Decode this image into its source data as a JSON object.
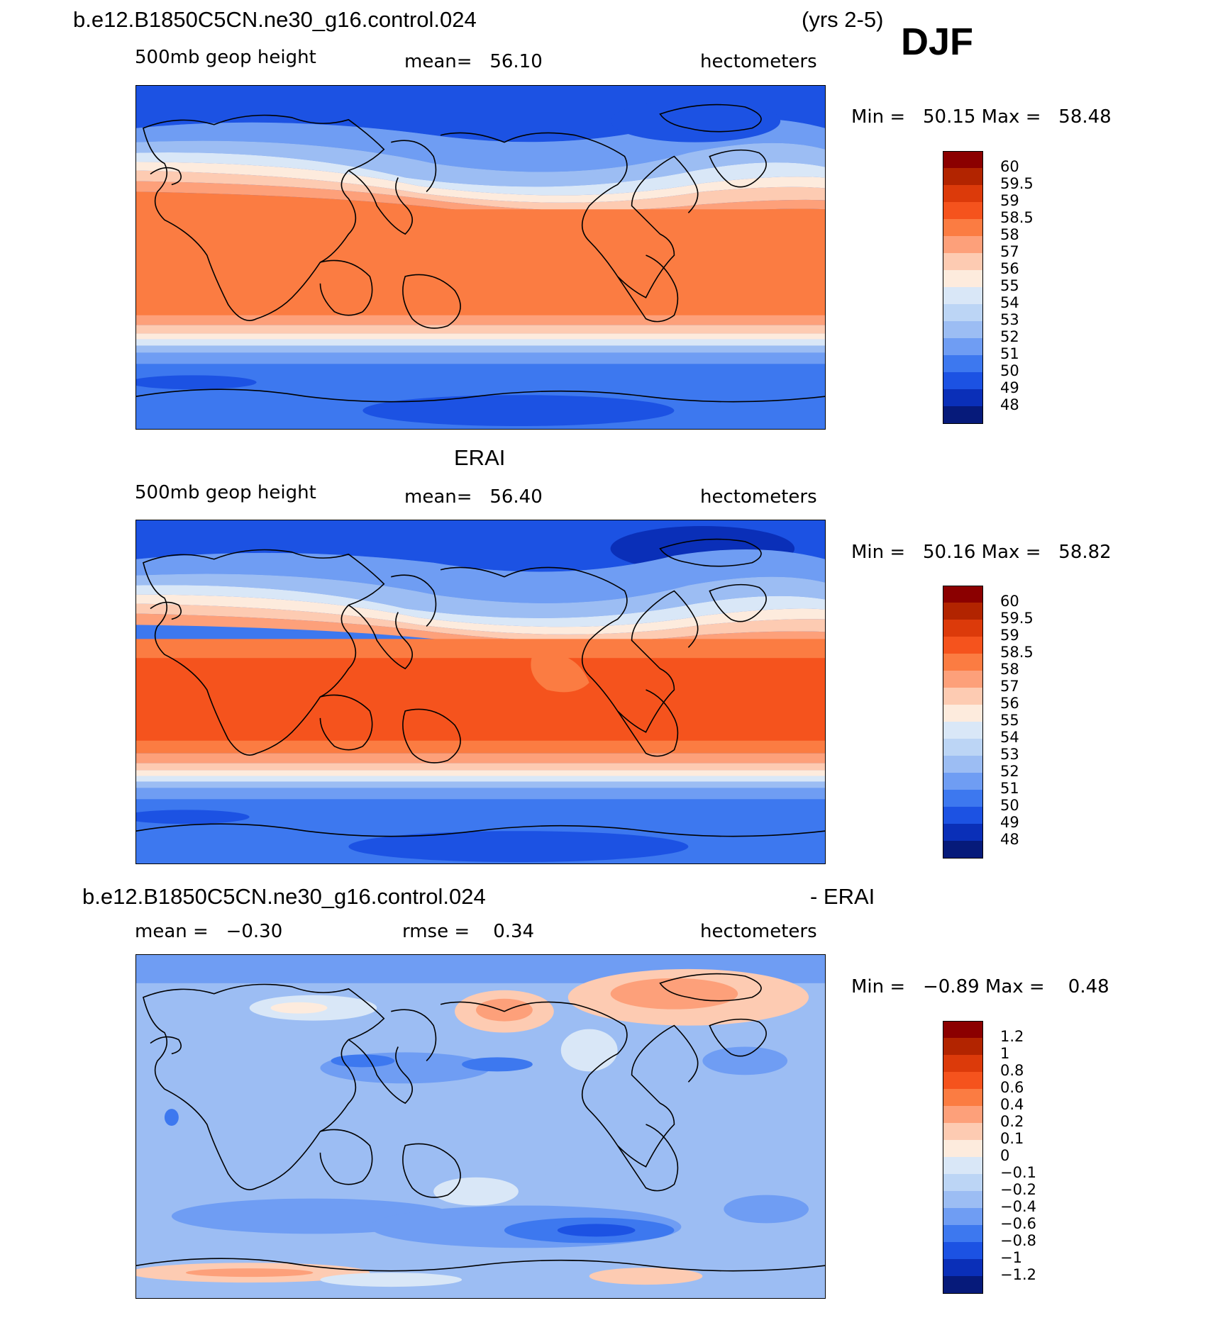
{
  "header": {
    "case_name": "b.e12.B1850C5CN.ne30_g16.control.024",
    "years": "(yrs 2-5)",
    "season": "DJF"
  },
  "panels": [
    {
      "id": "model",
      "title": "",
      "variable": "500mb geop height",
      "stat": "mean=   56.10",
      "units": "hectometers",
      "minmax": "Min =   50.15 Max =   58.48",
      "legend": [
        "60",
        "59.5",
        "59",
        "58.5",
        "58",
        "57",
        "56",
        "55",
        "54",
        "53",
        "52",
        "51",
        "50",
        "49",
        "48"
      ],
      "colors": [
        "#8b0000",
        "#b22400",
        "#dc3a0a",
        "#f5531d",
        "#fb7c42",
        "#fda07a",
        "#fdcbb2",
        "#fdebdd",
        "#d9e7f7",
        "#bcd5f5",
        "#9cbdf3",
        "#6f9df3",
        "#3d78ef",
        "#1c52e3",
        "#0a2fb8",
        "#061a7a"
      ]
    },
    {
      "id": "obs",
      "title": "ERAI",
      "variable": "500mb geop height",
      "stat": "mean=   56.40",
      "units": "hectometers",
      "minmax": "Min =   50.16 Max =   58.82",
      "legend": [
        "60",
        "59.5",
        "59",
        "58.5",
        "58",
        "57",
        "56",
        "55",
        "54",
        "53",
        "52",
        "51",
        "50",
        "49",
        "48"
      ],
      "colors": [
        "#8b0000",
        "#b22400",
        "#dc3a0a",
        "#f5531d",
        "#fb7c42",
        "#fda07a",
        "#fdcbb2",
        "#fdebdd",
        "#d9e7f7",
        "#bcd5f5",
        "#9cbdf3",
        "#6f9df3",
        "#3d78ef",
        "#1c52e3",
        "#0a2fb8",
        "#061a7a"
      ]
    },
    {
      "id": "diff",
      "title_left": "b.e12.B1850C5CN.ne30_g16.control.024",
      "title_right": "- ERAI",
      "stat_left": "mean =   −0.30",
      "stat_mid": "rmse =    0.34",
      "units": "hectometers",
      "minmax": "Min =   −0.89 Max =    0.48",
      "legend": [
        "1.2",
        "1",
        "0.8",
        "0.6",
        "0.4",
        "0.2",
        "0.1",
        "0",
        "−0.1",
        "−0.2",
        "−0.4",
        "−0.6",
        "−0.8",
        "−1",
        "−1.2"
      ],
      "colors": [
        "#8b0000",
        "#b22400",
        "#dc3a0a",
        "#f5531d",
        "#fb7c42",
        "#fda07a",
        "#fdcbb2",
        "#fdebdd",
        "#d9e7f7",
        "#bcd5f5",
        "#9cbdf3",
        "#6f9df3",
        "#3d78ef",
        "#1c52e3",
        "#0a2fb8",
        "#061a7a"
      ]
    }
  ]
}
